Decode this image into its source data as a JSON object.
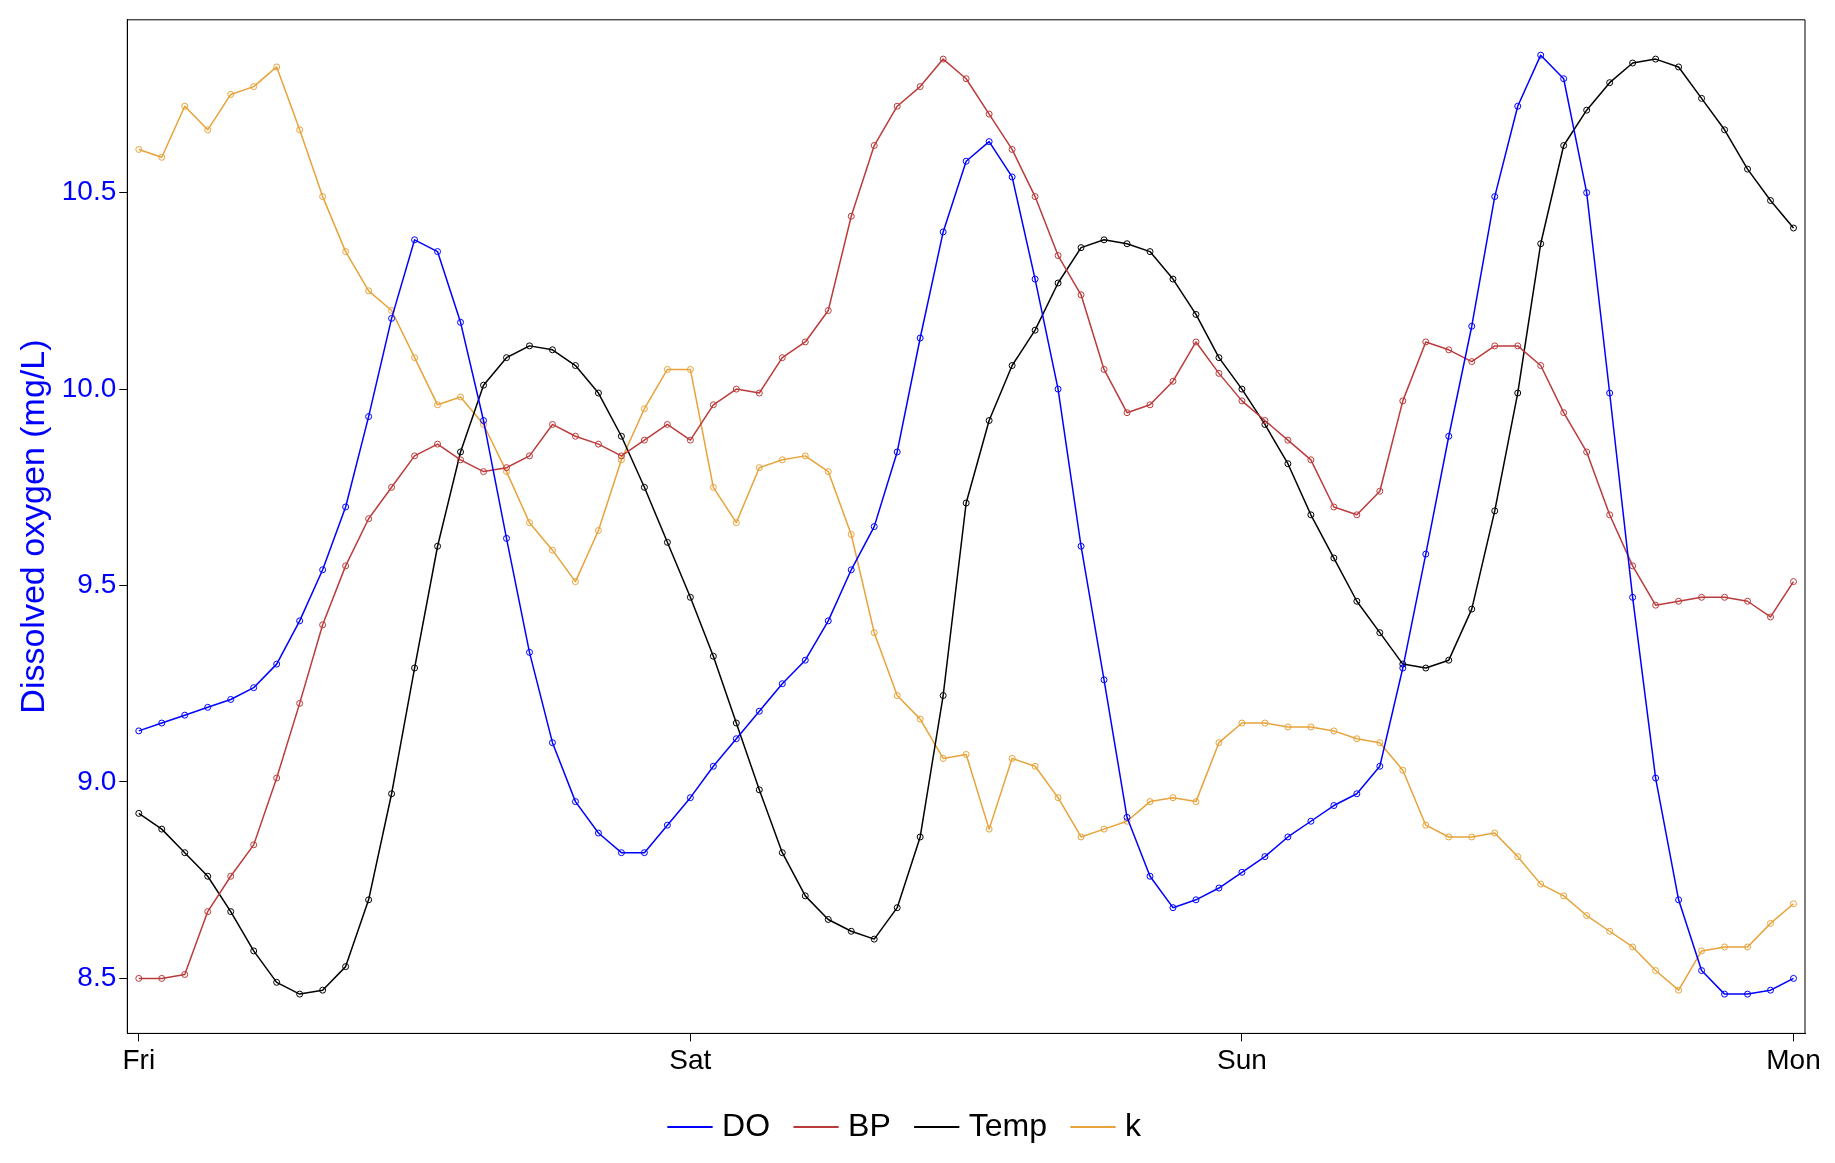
{
  "chart_data": {
    "type": "line",
    "ylabel": "Dissolved oxygen (mg/L)",
    "categories": [
      "Fri",
      null,
      null,
      null,
      null,
      null,
      null,
      null,
      null,
      null,
      null,
      null,
      null,
      null,
      null,
      null,
      null,
      null,
      null,
      null,
      null,
      null,
      null,
      null,
      "Sat",
      null,
      null,
      null,
      null,
      null,
      null,
      null,
      null,
      null,
      null,
      null,
      null,
      null,
      null,
      null,
      null,
      null,
      null,
      null,
      null,
      null,
      null,
      null,
      "Sun",
      null,
      null,
      null,
      null,
      null,
      null,
      null,
      null,
      null,
      null,
      null,
      null,
      null,
      null,
      null,
      null,
      null,
      null,
      null,
      null,
      null,
      null,
      null,
      "Mon"
    ],
    "ylim": [
      8.36,
      10.94
    ],
    "yticks": [
      8.5,
      {
        "value": 9,
        "label": "9.0"
      },
      9.5,
      {
        "value": 10,
        "label": "10.0"
      },
      10.5
    ],
    "grid": false,
    "legend": "bottom",
    "marker": "circle",
    "line_style": "solid",
    "series": [
      {
        "name": "DO",
        "color": "#0000ff",
        "values": [
          9.13,
          9.15,
          9.17,
          9.19,
          9.21,
          9.24,
          9.3,
          9.41,
          9.54,
          9.7,
          9.93,
          10.18,
          10.38,
          10.35,
          10.17,
          9.92,
          9.62,
          9.33,
          9.1,
          8.95,
          8.87,
          8.82,
          8.82,
          8.89,
          8.96,
          9.04,
          9.11,
          9.18,
          9.25,
          9.31,
          9.41,
          9.54,
          9.65,
          9.84,
          10.13,
          10.4,
          10.58,
          10.63,
          10.54,
          10.28,
          10.0,
          9.6,
          9.26,
          8.91,
          8.76,
          8.68,
          8.7,
          8.73,
          8.77,
          8.81,
          8.86,
          8.9,
          8.94,
          8.97,
          9.04,
          9.29,
          9.58,
          9.88,
          10.16,
          10.49,
          10.72,
          10.85,
          10.79,
          10.5,
          9.99,
          9.47,
          9.01,
          8.7,
          8.52,
          8.46,
          8.46,
          8.47,
          8.5
        ]
      },
      {
        "name": "BP",
        "color": "#bb3b3b",
        "values": [
          8.5,
          8.5,
          8.51,
          8.67,
          8.76,
          8.84,
          9.01,
          9.2,
          9.4,
          9.55,
          9.67,
          9.75,
          9.83,
          9.86,
          9.82,
          9.79,
          9.8,
          9.83,
          9.91,
          9.88,
          9.86,
          9.83,
          9.87,
          9.91,
          9.87,
          9.96,
          10.0,
          9.99,
          10.08,
          10.12,
          10.2,
          10.44,
          10.62,
          10.72,
          10.77,
          10.84,
          10.79,
          10.7,
          10.61,
          10.49,
          10.34,
          10.24,
          10.05,
          9.94,
          9.96,
          10.02,
          10.12,
          10.04,
          9.97,
          9.92,
          9.87,
          9.82,
          9.7,
          9.68,
          9.74,
          9.97,
          10.12,
          10.1,
          10.07,
          10.11,
          10.11,
          10.06,
          9.94,
          9.84,
          9.68,
          9.55,
          9.45,
          9.46,
          9.47,
          9.47,
          9.46,
          9.42,
          9.51
        ]
      },
      {
        "name": "Temp",
        "color": "#000000",
        "values": [
          8.92,
          8.88,
          8.82,
          8.76,
          8.67,
          8.57,
          8.49,
          8.46,
          8.47,
          8.53,
          8.7,
          8.97,
          9.29,
          9.6,
          9.84,
          10.01,
          10.08,
          10.11,
          10.1,
          10.06,
          9.99,
          9.88,
          9.75,
          9.61,
          9.47,
          9.32,
          9.15,
          8.98,
          8.82,
          8.71,
          8.65,
          8.62,
          8.6,
          8.68,
          8.86,
          9.22,
          9.71,
          9.92,
          10.06,
          10.15,
          10.27,
          10.36,
          10.38,
          10.37,
          10.35,
          10.28,
          10.19,
          10.08,
          10.0,
          9.91,
          9.81,
          9.68,
          9.57,
          9.46,
          9.38,
          9.3,
          9.29,
          9.31,
          9.44,
          9.69,
          9.99,
          10.37,
          10.62,
          10.71,
          10.78,
          10.83,
          10.84,
          10.82,
          10.74,
          10.66,
          10.56,
          10.48,
          10.41
        ]
      },
      {
        "name": "k",
        "color": "#e8a33a",
        "values": [
          10.61,
          10.59,
          10.72,
          10.66,
          10.75,
          10.77,
          10.82,
          10.66,
          10.49,
          10.35,
          10.25,
          10.2,
          10.08,
          9.96,
          9.98,
          9.91,
          9.79,
          9.66,
          9.59,
          9.51,
          9.64,
          9.82,
          9.95,
          10.05,
          10.05,
          9.75,
          9.66,
          9.8,
          9.82,
          9.83,
          9.79,
          9.63,
          9.38,
          9.22,
          9.16,
          9.06,
          9.07,
          8.88,
          9.06,
          9.04,
          8.96,
          8.86,
          8.88,
          8.9,
          8.95,
          8.96,
          8.95,
          9.1,
          9.15,
          9.15,
          9.14,
          9.14,
          9.13,
          9.11,
          9.1,
          9.03,
          8.89,
          8.86,
          8.86,
          8.87,
          8.81,
          8.74,
          8.71,
          8.66,
          8.62,
          8.58,
          8.52,
          8.47,
          8.57,
          8.58,
          8.58,
          8.64,
          8.69
        ]
      }
    ]
  }
}
